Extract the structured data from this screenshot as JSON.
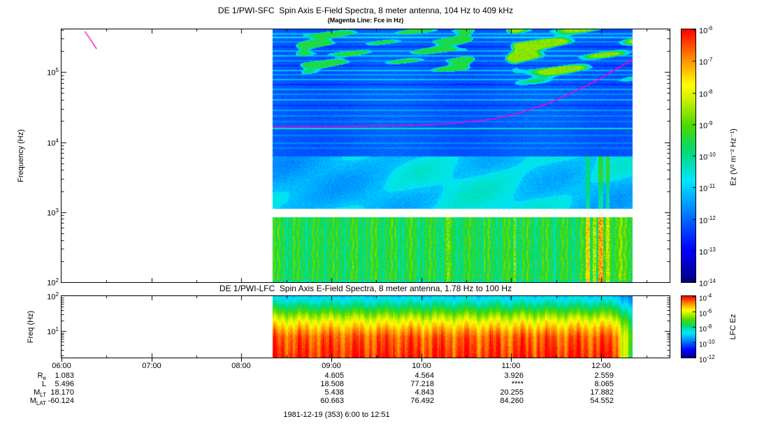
{
  "caption": "1981-12-19 (353) 6:00 to 12:51",
  "chart_data": [
    {
      "type": "heatmap",
      "name": "sfc-spectrogram",
      "title": "DE 1/PWI-SFC  Spin Axis E-Field Spectra, 8 meter antenna, 104 Hz to 409 kHz",
      "subtitle": "(Magenta Line: Fce in Hz)",
      "ylabel": "Frequency (Hz)",
      "y_scale": "log",
      "y_range_hz": [
        100,
        409000
      ],
      "y_tick_exponents": [
        5,
        4,
        3,
        2
      ],
      "x_axis_start_hours": 6.0,
      "x_axis_end_hours": 12.76,
      "x_tick_labels": [
        "06:00",
        "07:00",
        "08:00",
        "09:00",
        "10:00",
        "11:00",
        "12:00"
      ],
      "data_time_span_hours": [
        8.35,
        12.35
      ],
      "colorbar": {
        "label": "Ez (V² m⁻² Hz⁻¹)",
        "scale": "log",
        "tick_exponents": [
          -6,
          -7,
          -8,
          -9,
          -10,
          -11,
          -12,
          -13,
          -14
        ],
        "palette_stops": [
          [
            0,
            "#000082"
          ],
          [
            0.13,
            "#0000ff"
          ],
          [
            0.28,
            "#0082ff"
          ],
          [
            0.4,
            "#00e6ff"
          ],
          [
            0.52,
            "#00d975"
          ],
          [
            0.62,
            "#4bd900"
          ],
          [
            0.72,
            "#c8f000"
          ],
          [
            0.78,
            "#ffff00"
          ],
          [
            0.88,
            "#ff9100"
          ],
          [
            1,
            "#ff0000"
          ]
        ]
      },
      "features": {
        "fce_line_color": "#ff00cc",
        "fce_line_hours_loghz": [
          [
            8.35,
            4.22
          ],
          [
            9.0,
            4.225
          ],
          [
            9.5,
            4.23
          ],
          [
            10.0,
            4.245
          ],
          [
            10.4,
            4.275
          ],
          [
            10.8,
            4.33
          ],
          [
            11.1,
            4.42
          ],
          [
            11.4,
            4.55
          ],
          [
            11.7,
            4.72
          ],
          [
            11.95,
            4.88
          ],
          [
            12.15,
            5.03
          ],
          [
            12.35,
            5.18
          ]
        ],
        "fce_perigee_segment_hours_loghz": [
          [
            6.26,
            5.58
          ],
          [
            6.32,
            5.47
          ],
          [
            6.39,
            5.33
          ]
        ],
        "interference_line_loghz": 4.2,
        "white_gap_loghz": [
          2.93,
          3.05
        ],
        "region_boundary_loghz": 3.8,
        "region_levels": {
          "upper_blue": 0.235,
          "mid_cyan": 0.345,
          "lower_green": 0.555
        },
        "interference_streaks_loghz": [
          [
            5.55,
            0.1
          ],
          [
            5.5,
            0.13
          ],
          [
            5.44,
            0.08
          ],
          [
            5.37,
            -0.05
          ],
          [
            5.31,
            0.11
          ],
          [
            5.24,
            0.13
          ],
          [
            5.17,
            0.07
          ],
          [
            5.1,
            -0.05
          ],
          [
            5.03,
            0.12
          ],
          [
            4.97,
            0.08
          ],
          [
            4.9,
            0.12
          ],
          [
            4.83,
            -0.05
          ],
          [
            4.76,
            0.1
          ],
          [
            4.69,
            0.07
          ],
          [
            4.61,
            0.12
          ],
          [
            4.53,
            -0.04
          ],
          [
            4.46,
            0.08
          ],
          [
            4.38,
            0.06
          ],
          [
            4.3,
            0.05
          ],
          [
            4.1,
            0.05
          ],
          [
            3.99,
            0.06
          ],
          [
            3.92,
            0.05
          ]
        ],
        "intense_columns_hours": [
          [
            10.28,
            10.31,
            0.64
          ],
          [
            11.02,
            11.05,
            0.66
          ],
          [
            11.82,
            11.87,
            0.8
          ],
          [
            11.9,
            11.94,
            0.7
          ],
          [
            11.96,
            12.02,
            0.86
          ],
          [
            12.05,
            12.09,
            0.72
          ]
        ],
        "red_specks_box": [
          11.45,
          11.65,
          5.05,
          5.25
        ]
      }
    },
    {
      "type": "heatmap",
      "name": "lfc-spectrogram",
      "title": "DE 1/PWI-LFC  Spin Axis E-Field Spectra, 8 meter antenna, 1.78 Hz to 100 Hz",
      "ylabel": "Freq (Hz)",
      "y_scale": "log",
      "y_range_hz": [
        1.78,
        100
      ],
      "y_tick_exponents": [
        2,
        1
      ],
      "data_time_span_hours": [
        8.35,
        12.35
      ],
      "colorbar": {
        "label": "LFC Ez",
        "scale": "log",
        "tick_exponents": [
          -4,
          -6,
          -8,
          -10,
          -12
        ]
      },
      "profile_loghz_level": [
        [
          2.0,
          0.38
        ],
        [
          1.85,
          0.45
        ],
        [
          1.65,
          0.56
        ],
        [
          1.45,
          0.68
        ],
        [
          1.3,
          0.76
        ],
        [
          1.1,
          0.84
        ],
        [
          0.85,
          0.92
        ],
        [
          0.25,
          0.97
        ]
      ]
    },
    {
      "type": "table",
      "name": "ephemeris",
      "row_labels": [
        [
          "R",
          "e"
        ],
        [
          "L",
          ""
        ],
        [
          "M",
          "LT"
        ],
        [
          "M",
          "LAT"
        ]
      ],
      "column_hours": [
        6,
        9,
        10,
        11,
        12
      ],
      "rows": [
        [
          "1.083",
          "4.605",
          "4.564",
          "3.926",
          "2.559"
        ],
        [
          "5.496",
          "18.508",
          "77.218",
          "****",
          "8.065"
        ],
        [
          "18.170",
          "5.438",
          "4.843",
          "20.255",
          "17.882"
        ],
        [
          "-60.124",
          "60.663",
          "76.492",
          "84.260",
          "54.552"
        ]
      ]
    }
  ]
}
